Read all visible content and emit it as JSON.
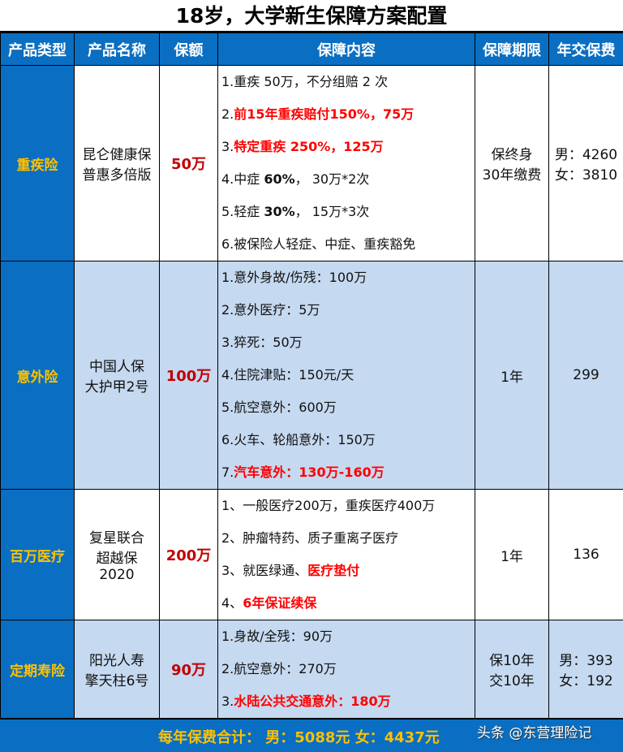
{
  "title": "18岁，大学新生保障方案配置",
  "headers": [
    "产品类型",
    "产品名称",
    "保额",
    "保障内容",
    "保障期限",
    "年交保费"
  ],
  "rows": [
    {
      "type": "重疾险",
      "name": [
        "昆仑健康保",
        "普惠多倍版"
      ],
      "amount": "50万",
      "content": [
        [
          {
            "t": "1.重疾 50万，不分组赔 2 次",
            "s": ""
          }
        ],
        [
          {
            "t": "2.",
            "s": ""
          },
          {
            "t": "前15年重疾赔付150%，75万",
            "s": "red"
          }
        ],
        [
          {
            "t": "3.",
            "s": ""
          },
          {
            "t": "特定重疾 250%，125万",
            "s": "red"
          }
        ],
        [
          {
            "t": "4.中症 ",
            "s": ""
          },
          {
            "t": "60%",
            "s": "bold"
          },
          {
            "t": "， 30万*2次",
            "s": ""
          }
        ],
        [
          {
            "t": "5.轻症 ",
            "s": ""
          },
          {
            "t": "30%",
            "s": "bold"
          },
          {
            "t": "， 15万*3次",
            "s": ""
          }
        ],
        [
          {
            "t": "6.被保险人轻症、中症、重疾豁免",
            "s": ""
          }
        ]
      ],
      "term": [
        "保终身",
        "30年缴费"
      ],
      "premium": [
        "男：4260",
        "女：3810"
      ]
    },
    {
      "type": "意外险",
      "name": [
        "中国人保",
        "大护甲2号"
      ],
      "amount": "100万",
      "content": [
        [
          {
            "t": "1.意外身故/伤残：100万",
            "s": ""
          }
        ],
        [
          {
            "t": "2.意外医疗：5万",
            "s": ""
          }
        ],
        [
          {
            "t": "3.猝死：50万",
            "s": ""
          }
        ],
        [
          {
            "t": "4.住院津贴：150元/天",
            "s": ""
          }
        ],
        [
          {
            "t": "5.航空意外：600万",
            "s": ""
          }
        ],
        [
          {
            "t": "6.火车、轮船意外：150万",
            "s": ""
          }
        ],
        [
          {
            "t": "7.",
            "s": ""
          },
          {
            "t": "汽车意外：130万-160万",
            "s": "red"
          }
        ]
      ],
      "term": [
        "1年"
      ],
      "premium": [
        "299"
      ]
    },
    {
      "type": "百万医疗",
      "name": [
        "复星联合",
        "超越保",
        "2020"
      ],
      "amount": "200万",
      "content": [
        [
          {
            "t": "1、一般医疗200万，重疾医疗400万",
            "s": ""
          }
        ],
        [
          {
            "t": "2、肿瘤特药、质子重离子医疗",
            "s": ""
          }
        ],
        [
          {
            "t": "3、就医绿通、",
            "s": ""
          },
          {
            "t": "医疗垫付",
            "s": "red"
          }
        ],
        [
          {
            "t": "4、",
            "s": ""
          },
          {
            "t": "6年保证续保",
            "s": "red"
          }
        ]
      ],
      "term": [
        "1年"
      ],
      "premium": [
        "136"
      ]
    },
    {
      "type": "定期寿险",
      "name": [
        "阳光人寿",
        "擎天柱6号"
      ],
      "amount": "90万",
      "content": [
        [
          {
            "t": "1.身故/全残：90万",
            "s": ""
          }
        ],
        [
          {
            "t": "2.航空意外：270万",
            "s": ""
          }
        ],
        [
          {
            "t": "3.",
            "s": ""
          },
          {
            "t": "水陆公共交通意外：180万",
            "s": "red"
          }
        ]
      ],
      "term": [
        "保10年",
        "交10年"
      ],
      "premium": [
        "男：393",
        "女：192"
      ]
    }
  ],
  "footer": {
    "total": "每年保费合计：  男：5088元    女：4437元",
    "watermark": "头条 @东营理险记"
  },
  "colors": {
    "header_bg": "#0a6fc2",
    "type_text": "#ffc000",
    "amount_text": "#c00000",
    "highlight": "#ff0000",
    "alt_row": "#c5d9f0"
  }
}
